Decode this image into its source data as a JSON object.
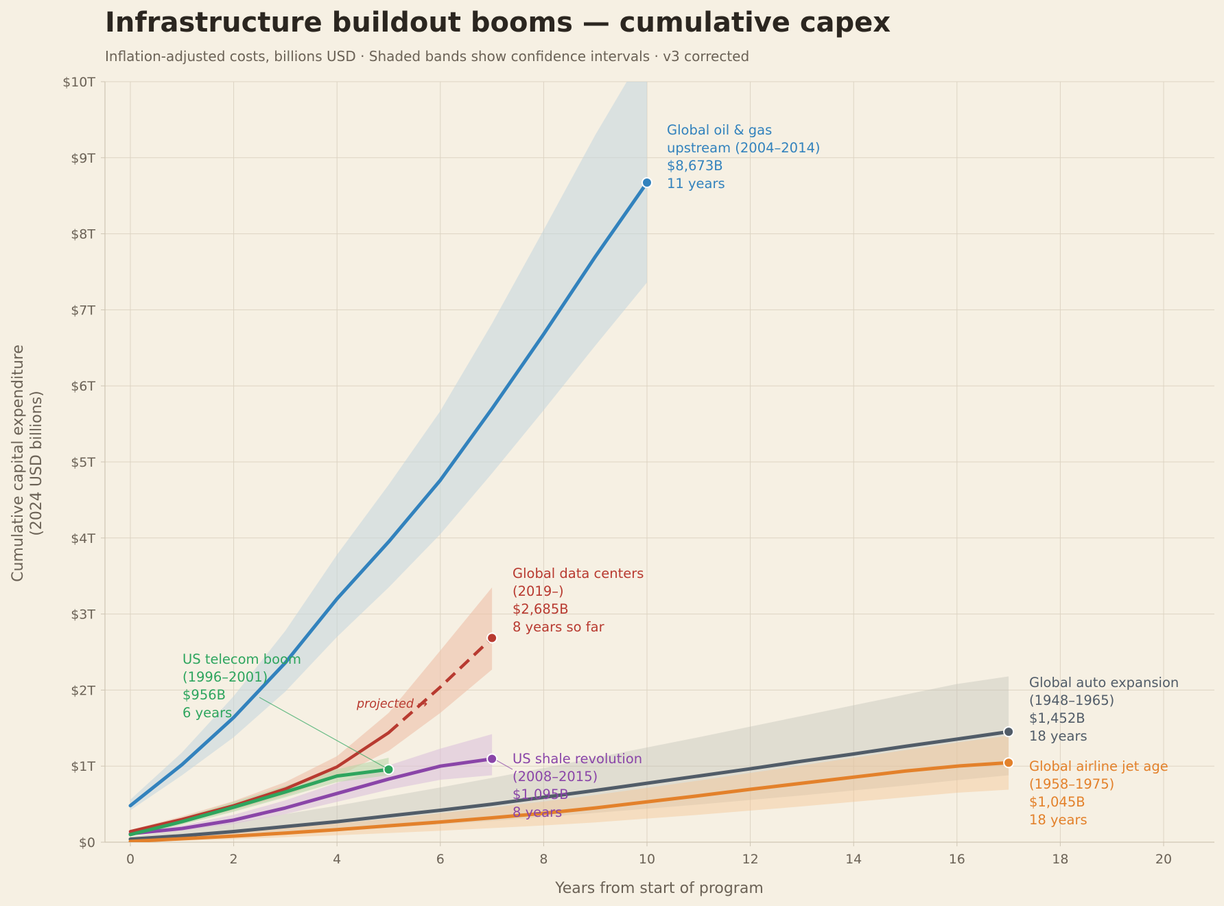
{
  "chart_data": {
    "type": "line",
    "title": "Infrastructure buildout booms — cumulative capex",
    "subtitle": "Inflation-adjusted costs, billions USD  ·  Shaded bands show confidence intervals  ·  v3 corrected",
    "xlabel": "Years from start of program",
    "ylabel": [
      "Cumulative capital expenditure",
      "(2024 USD billions)"
    ],
    "xlim": [
      -0.5,
      21
    ],
    "ylim": [
      0,
      10000
    ],
    "x_ticks": [
      0,
      2,
      4,
      6,
      8,
      10,
      12,
      14,
      16,
      18,
      20
    ],
    "y_ticks": [
      {
        "value": 0,
        "label": "$0"
      },
      {
        "value": 1000,
        "label": "$1T"
      },
      {
        "value": 2000,
        "label": "$2T"
      },
      {
        "value": 3000,
        "label": "$3T"
      },
      {
        "value": 4000,
        "label": "$4T"
      },
      {
        "value": 5000,
        "label": "$5T"
      },
      {
        "value": 6000,
        "label": "$6T"
      },
      {
        "value": 7000,
        "label": "$7T"
      },
      {
        "value": 8000,
        "label": "$8T"
      },
      {
        "value": 9000,
        "label": "$9T"
      },
      {
        "value": 10000,
        "label": "$10T"
      }
    ],
    "grid": true,
    "series": [
      {
        "key": "oil",
        "color": "#3282bd",
        "x": [
          0,
          1,
          2,
          3,
          4,
          5,
          6,
          7,
          8,
          9,
          10
        ],
        "y": [
          480,
          1020,
          1640,
          2360,
          3200,
          3950,
          4760,
          5700,
          6680,
          7700,
          8673
        ],
        "lower": [
          420,
          880,
          1380,
          1980,
          2700,
          3350,
          4050,
          4850,
          5680,
          6530,
          7360
        ],
        "upper": [
          560,
          1180,
          1920,
          2780,
          3780,
          4700,
          5670,
          6820,
          8050,
          9300,
          10450
        ],
        "label_lines": [
          "Global oil & gas",
          "upstream (2004–2014)",
          "$8,673B",
          "11 years"
        ]
      },
      {
        "key": "auto",
        "color": "#515c68",
        "x": [
          0,
          1,
          2,
          3,
          4,
          5,
          6,
          7,
          8,
          9,
          10,
          11,
          12,
          13,
          14,
          15,
          16,
          17
        ],
        "y": [
          40,
          85,
          140,
          205,
          270,
          345,
          420,
          500,
          590,
          680,
          775,
          870,
          965,
          1065,
          1160,
          1260,
          1355,
          1452
        ],
        "lower": [
          20,
          45,
          75,
          110,
          150,
          190,
          235,
          280,
          330,
          385,
          440,
          495,
          555,
          615,
          680,
          745,
          815,
          880
        ],
        "upper": [
          70,
          160,
          260,
          370,
          480,
          600,
          720,
          845,
          975,
          1110,
          1245,
          1380,
          1520,
          1660,
          1800,
          1940,
          2080,
          2180
        ],
        "label_lines": [
          "Global auto expansion",
          "(1948–1965)",
          "$1,452B",
          "18 years"
        ]
      },
      {
        "key": "airline",
        "color": "#e3812b",
        "x": [
          0,
          1,
          2,
          3,
          4,
          5,
          6,
          7,
          8,
          9,
          10,
          11,
          12,
          13,
          14,
          15,
          16,
          17
        ],
        "y": [
          10,
          45,
          80,
          120,
          165,
          215,
          265,
          320,
          380,
          450,
          530,
          610,
          695,
          775,
          855,
          935,
          1000,
          1045
        ],
        "lower": [
          0,
          20,
          40,
          65,
          90,
          120,
          150,
          185,
          220,
          260,
          310,
          360,
          415,
          470,
          530,
          590,
          650,
          690
        ],
        "upper": [
          30,
          80,
          130,
          185,
          245,
          310,
          380,
          455,
          535,
          620,
          715,
          810,
          910,
          1010,
          1110,
          1210,
          1310,
          1400
        ],
        "label_lines": [
          "Global airline jet age",
          "(1958–1975)",
          "$1,045B",
          "18 years"
        ]
      },
      {
        "key": "telecom",
        "color": "#2ea55e",
        "x": [
          0,
          1,
          2,
          3,
          4,
          5
        ],
        "y": [
          100,
          270,
          460,
          660,
          870,
          956
        ],
        "lower": [
          80,
          230,
          400,
          590,
          790,
          880
        ],
        "upper": [
          130,
          320,
          530,
          740,
          960,
          1110
        ],
        "label_lines": [
          "US telecom boom",
          "(1996–2001)",
          "$956B",
          "6 years"
        ]
      },
      {
        "key": "shale",
        "color": "#8a45a8",
        "x": [
          0,
          1,
          2,
          3,
          4,
          5,
          6,
          7
        ],
        "y": [
          110,
          180,
          290,
          450,
          640,
          830,
          1000,
          1095
        ],
        "lower": [
          90,
          150,
          240,
          370,
          530,
          690,
          820,
          880
        ],
        "upper": [
          140,
          220,
          360,
          550,
          780,
          1010,
          1230,
          1420
        ],
        "label_lines": [
          "US shale revolution",
          "(2008–2015)",
          "$1,095B",
          "8 years"
        ]
      },
      {
        "key": "datacenter",
        "color": "#b83a30",
        "x": [
          0,
          1,
          2,
          3,
          4,
          5,
          6,
          7
        ],
        "y": [
          140,
          300,
          480,
          700,
          990,
          1440,
          2040,
          2685
        ],
        "projected_from_x": 5,
        "lower": [
          120,
          260,
          420,
          610,
          860,
          1200,
          1700,
          2270
        ],
        "upper": [
          160,
          340,
          540,
          790,
          1130,
          1700,
          2520,
          3350
        ],
        "label_lines": [
          "Global data centers",
          "(2019–)",
          "$2,685B",
          "8 years so far"
        ]
      }
    ],
    "annotations": [
      {
        "text": "projected →",
        "color": "#b83a30"
      }
    ]
  }
}
